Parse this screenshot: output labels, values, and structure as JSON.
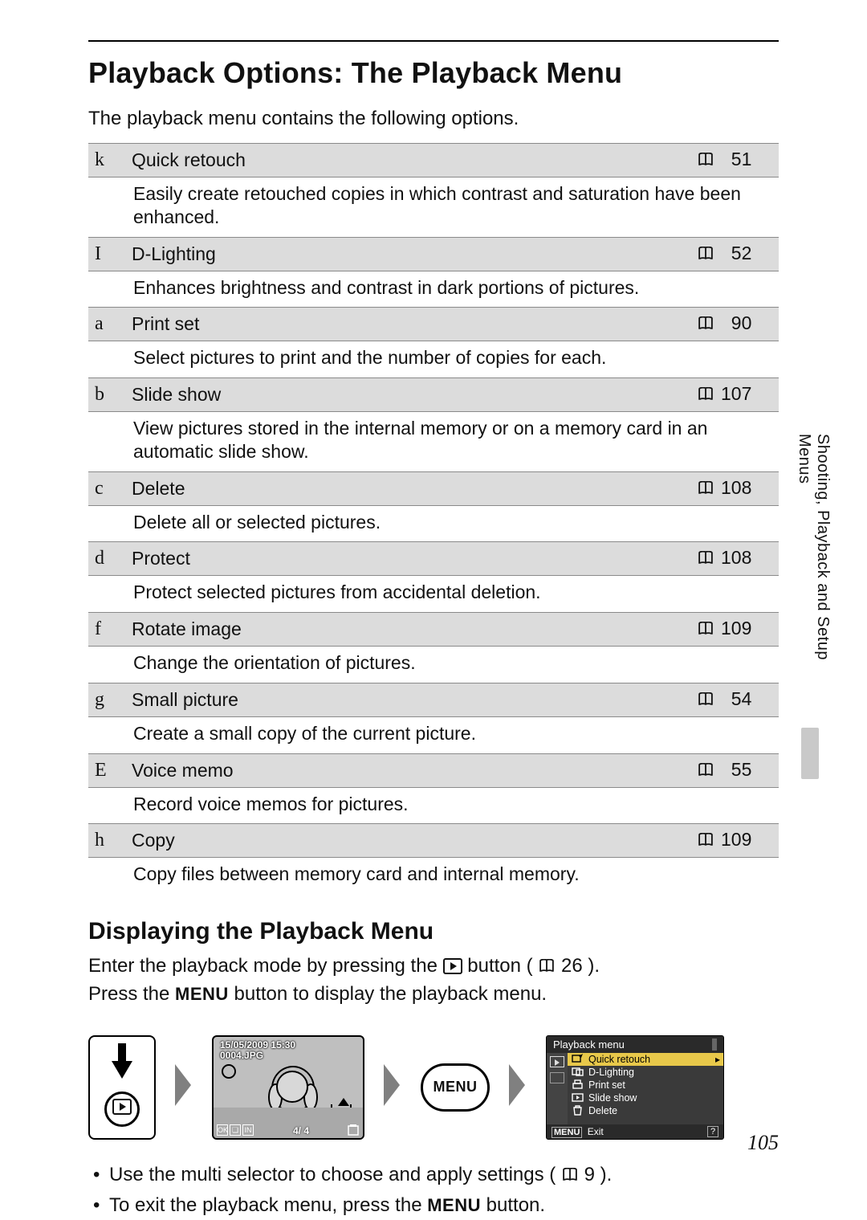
{
  "title": "Playback Options: The Playback Menu",
  "intro": "The playback menu contains the following options.",
  "side_label": "Shooting, Playback and Setup Menus",
  "page_number": "105",
  "subhead": "Displaying the Playback Menu",
  "display_line1_a": "Enter the playback mode by pressing the ",
  "display_line1_b": " button (",
  "display_line1_page": "26",
  "display_line1_c": ").",
  "display_line2_a": "Press the ",
  "display_line2_menu": "MENU",
  "display_line2_b": " button to display the playback menu.",
  "bullets": {
    "b1_a": "Use the multi selector to choose and apply settings (",
    "b1_page": "9",
    "b1_b": ").",
    "b2_a": "To exit the playback menu, press the ",
    "b2_menu": "MENU",
    "b2_b": " button."
  },
  "options": [
    {
      "sym": "k",
      "name": "Quick retouch",
      "page": "51",
      "desc": "Easily create retouched copies in which contrast and saturation have been enhanced."
    },
    {
      "sym": "I",
      "name": "D-Lighting",
      "page": "52",
      "desc": "Enhances brightness and contrast in dark portions of pictures."
    },
    {
      "sym": "a",
      "name": "Print set",
      "page": "90",
      "desc": "Select pictures to print and the number of copies for each."
    },
    {
      "sym": "b",
      "name": "Slide show",
      "page": "107",
      "desc": "View pictures stored in the internal memory or on a memory card in an automatic slide show."
    },
    {
      "sym": "c",
      "name": "Delete",
      "page": "108",
      "desc": "Delete all or selected pictures."
    },
    {
      "sym": "d",
      "name": "Protect",
      "page": "108",
      "desc": "Protect selected pictures from accidental deletion."
    },
    {
      "sym": "f",
      "name": "Rotate image",
      "page": "109",
      "desc": "Change the orientation of pictures."
    },
    {
      "sym": "g",
      "name": "Small picture",
      "page": "54",
      "desc": "Create a small copy of the current picture."
    },
    {
      "sym": "E",
      "name": "Voice memo",
      "page": "55",
      "desc": "Record voice memos for pictures."
    },
    {
      "sym": "h",
      "name": "Copy",
      "page": "109",
      "desc": "Copy files between memory card and internal memory."
    }
  ],
  "lcd": {
    "timestamp": "15/05/2009 15:30",
    "filename": "0004.JPG",
    "counter": "4/    4",
    "bottom_icons": [
      "OK",
      "❏",
      "IN"
    ]
  },
  "menu_button_label": "MENU",
  "menu_screen": {
    "title": "Playback menu",
    "items": [
      {
        "label": "Quick retouch",
        "selected": true,
        "icon": "retouch"
      },
      {
        "label": "D-Lighting",
        "selected": false,
        "icon": "dlighting"
      },
      {
        "label": "Print set",
        "selected": false,
        "icon": "print"
      },
      {
        "label": "Slide show",
        "selected": false,
        "icon": "slide"
      },
      {
        "label": "Delete",
        "selected": false,
        "icon": "delete"
      }
    ],
    "footer_menu": "MENU",
    "footer_exit": "Exit",
    "footer_help": "?"
  },
  "colors": {
    "row_header_bg": "#dcdcdc",
    "row_border": "#8a8a8a",
    "menu_bg": "#3a3a3a",
    "menu_sel_bg": "#e8c84a",
    "side_tab_fill": "#c9c9c9"
  }
}
